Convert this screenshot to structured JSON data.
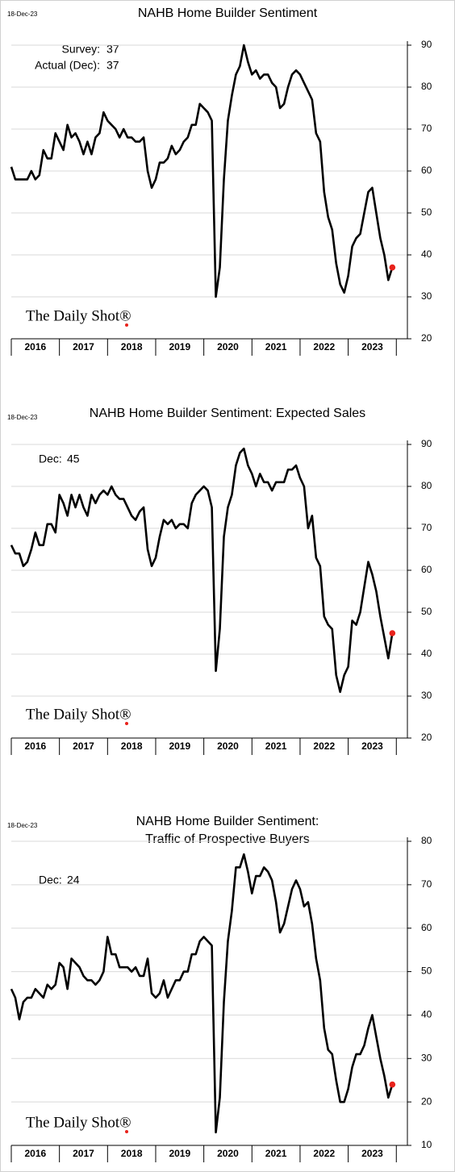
{
  "chart_data": [
    {
      "type": "line",
      "date_label": "18-Dec-23",
      "title": [
        "NAHB Home Builder Sentiment"
      ],
      "annotations": [
        {
          "label": "Survey:",
          "value": 37
        },
        {
          "label": "Actual (Dec):",
          "value": 37
        }
      ],
      "watermark": "The Daily Shot®",
      "x": [
        2016,
        2016.083,
        2016.167,
        2016.25,
        2016.333,
        2016.417,
        2016.5,
        2016.583,
        2016.667,
        2016.75,
        2016.833,
        2016.917,
        2017,
        2017.083,
        2017.167,
        2017.25,
        2017.333,
        2017.417,
        2017.5,
        2017.583,
        2017.667,
        2017.75,
        2017.833,
        2017.917,
        2018,
        2018.083,
        2018.167,
        2018.25,
        2018.333,
        2018.417,
        2018.5,
        2018.583,
        2018.667,
        2018.75,
        2018.833,
        2018.917,
        2019,
        2019.083,
        2019.167,
        2019.25,
        2019.333,
        2019.417,
        2019.5,
        2019.583,
        2019.667,
        2019.75,
        2019.833,
        2019.917,
        2020,
        2020.083,
        2020.167,
        2020.25,
        2020.333,
        2020.417,
        2020.5,
        2020.583,
        2020.667,
        2020.75,
        2020.833,
        2020.917,
        2021,
        2021.083,
        2021.167,
        2021.25,
        2021.333,
        2021.417,
        2021.5,
        2021.583,
        2021.667,
        2021.75,
        2021.833,
        2021.917,
        2022,
        2022.083,
        2022.167,
        2022.25,
        2022.333,
        2022.417,
        2022.5,
        2022.583,
        2022.667,
        2022.75,
        2022.833,
        2022.917,
        2023,
        2023.083,
        2023.167,
        2023.25,
        2023.333,
        2023.417,
        2023.5,
        2023.583,
        2023.667,
        2023.75,
        2023.833,
        2023.917
      ],
      "series": [
        {
          "color": "#000000",
          "marker_color": "#e8221b",
          "values": [
            61,
            58,
            58,
            58,
            58,
            60,
            58,
            59,
            65,
            63,
            63,
            69,
            67,
            65,
            71,
            68,
            69,
            67,
            64,
            67,
            64,
            68,
            69,
            74,
            72,
            71,
            70,
            68,
            70,
            68,
            68,
            67,
            67,
            68,
            60,
            56,
            58,
            62,
            62,
            63,
            66,
            64,
            65,
            67,
            68,
            71,
            71,
            76,
            75,
            74,
            72,
            30,
            37,
            58,
            72,
            78,
            83,
            85,
            90,
            86,
            83,
            84,
            82,
            83,
            83,
            81,
            80,
            75,
            76,
            80,
            83,
            84,
            83,
            81,
            79,
            77,
            69,
            67,
            55,
            49,
            46,
            38,
            33,
            31,
            35,
            42,
            44,
            45,
            50,
            55,
            56,
            50,
            44,
            40,
            34,
            37
          ]
        }
      ],
      "xlim": [
        2016,
        2024.23
      ],
      "xticks": [
        {
          "value": 2016.5,
          "label": "2016"
        },
        {
          "value": 2017.5,
          "label": "2017"
        },
        {
          "value": 2018.5,
          "label": "2018"
        },
        {
          "value": 2019.5,
          "label": "2019"
        },
        {
          "value": 2020.5,
          "label": "2020"
        },
        {
          "value": 2021.5,
          "label": "2021"
        },
        {
          "value": 2022.5,
          "label": "2022"
        },
        {
          "value": 2023.5,
          "label": "2023"
        }
      ],
      "ylim": [
        20,
        90
      ],
      "yticks": [
        20,
        30,
        40,
        50,
        60,
        70,
        80,
        90
      ],
      "grid": true
    },
    {
      "type": "line",
      "date_label": "18-Dec-23",
      "title": [
        "NAHB Home Builder Sentiment: Expected Sales"
      ],
      "annotations": [
        {
          "label": "Dec:",
          "value": 45
        }
      ],
      "watermark": "The Daily Shot®",
      "x": [
        2016,
        2016.083,
        2016.167,
        2016.25,
        2016.333,
        2016.417,
        2016.5,
        2016.583,
        2016.667,
        2016.75,
        2016.833,
        2016.917,
        2017,
        2017.083,
        2017.167,
        2017.25,
        2017.333,
        2017.417,
        2017.5,
        2017.583,
        2017.667,
        2017.75,
        2017.833,
        2017.917,
        2018,
        2018.083,
        2018.167,
        2018.25,
        2018.333,
        2018.417,
        2018.5,
        2018.583,
        2018.667,
        2018.75,
        2018.833,
        2018.917,
        2019,
        2019.083,
        2019.167,
        2019.25,
        2019.333,
        2019.417,
        2019.5,
        2019.583,
        2019.667,
        2019.75,
        2019.833,
        2019.917,
        2020,
        2020.083,
        2020.167,
        2020.25,
        2020.333,
        2020.417,
        2020.5,
        2020.583,
        2020.667,
        2020.75,
        2020.833,
        2020.917,
        2021,
        2021.083,
        2021.167,
        2021.25,
        2021.333,
        2021.417,
        2021.5,
        2021.583,
        2021.667,
        2021.75,
        2021.833,
        2021.917,
        2022,
        2022.083,
        2022.167,
        2022.25,
        2022.333,
        2022.417,
        2022.5,
        2022.583,
        2022.667,
        2022.75,
        2022.833,
        2022.917,
        2023,
        2023.083,
        2023.167,
        2023.25,
        2023.333,
        2023.417,
        2023.5,
        2023.583,
        2023.667,
        2023.75,
        2023.833,
        2023.917
      ],
      "series": [
        {
          "color": "#000000",
          "marker_color": "#e8221b",
          "values": [
            66,
            64,
            64,
            61,
            62,
            65,
            69,
            66,
            66,
            71,
            71,
            69,
            78,
            76,
            73,
            78,
            75,
            78,
            75,
            73,
            78,
            76,
            78,
            79,
            78,
            80,
            78,
            77,
            77,
            75,
            73,
            72,
            74,
            75,
            65,
            61,
            63,
            68,
            72,
            71,
            72,
            70,
            71,
            71,
            70,
            76,
            78,
            79,
            80,
            79,
            75,
            36,
            46,
            68,
            75,
            78,
            85,
            88,
            89,
            85,
            83,
            80,
            83,
            81,
            81,
            79,
            81,
            81,
            81,
            84,
            84,
            85,
            82,
            80,
            70,
            73,
            63,
            61,
            49,
            47,
            46,
            35,
            31,
            35,
            37,
            48,
            47,
            50,
            56,
            62,
            59,
            55,
            49,
            44,
            39,
            45
          ]
        }
      ],
      "xlim": [
        2016,
        2024.23
      ],
      "xticks": [
        {
          "value": 2016.5,
          "label": "2016"
        },
        {
          "value": 2017.5,
          "label": "2017"
        },
        {
          "value": 2018.5,
          "label": "2018"
        },
        {
          "value": 2019.5,
          "label": "2019"
        },
        {
          "value": 2020.5,
          "label": "2020"
        },
        {
          "value": 2021.5,
          "label": "2021"
        },
        {
          "value": 2022.5,
          "label": "2022"
        },
        {
          "value": 2023.5,
          "label": "2023"
        }
      ],
      "ylim": [
        20,
        90
      ],
      "yticks": [
        20,
        30,
        40,
        50,
        60,
        70,
        80,
        90
      ],
      "grid": true
    },
    {
      "type": "line",
      "date_label": "18-Dec-23",
      "title": [
        "NAHB Home Builder Sentiment:",
        "Traffic of Prospective Buyers"
      ],
      "annotations": [
        {
          "label": "Dec:",
          "value": 24
        }
      ],
      "watermark": "The Daily Shot®",
      "x": [
        2016,
        2016.083,
        2016.167,
        2016.25,
        2016.333,
        2016.417,
        2016.5,
        2016.583,
        2016.667,
        2016.75,
        2016.833,
        2016.917,
        2017,
        2017.083,
        2017.167,
        2017.25,
        2017.333,
        2017.417,
        2017.5,
        2017.583,
        2017.667,
        2017.75,
        2017.833,
        2017.917,
        2018,
        2018.083,
        2018.167,
        2018.25,
        2018.333,
        2018.417,
        2018.5,
        2018.583,
        2018.667,
        2018.75,
        2018.833,
        2018.917,
        2019,
        2019.083,
        2019.167,
        2019.25,
        2019.333,
        2019.417,
        2019.5,
        2019.583,
        2019.667,
        2019.75,
        2019.833,
        2019.917,
        2020,
        2020.083,
        2020.167,
        2020.25,
        2020.333,
        2020.417,
        2020.5,
        2020.583,
        2020.667,
        2020.75,
        2020.833,
        2020.917,
        2021,
        2021.083,
        2021.167,
        2021.25,
        2021.333,
        2021.417,
        2021.5,
        2021.583,
        2021.667,
        2021.75,
        2021.833,
        2021.917,
        2022,
        2022.083,
        2022.167,
        2022.25,
        2022.333,
        2022.417,
        2022.5,
        2022.583,
        2022.667,
        2022.75,
        2022.833,
        2022.917,
        2023,
        2023.083,
        2023.167,
        2023.25,
        2023.333,
        2023.417,
        2023.5,
        2023.583,
        2023.667,
        2023.75,
        2023.833,
        2023.917
      ],
      "series": [
        {
          "color": "#000000",
          "marker_color": "#e8221b",
          "values": [
            46,
            44,
            39,
            43,
            44,
            44,
            46,
            45,
            44,
            47,
            46,
            47,
            52,
            51,
            46,
            53,
            52,
            51,
            49,
            48,
            48,
            47,
            48,
            50,
            58,
            54,
            54,
            51,
            51,
            51,
            50,
            51,
            49,
            49,
            53,
            45,
            44,
            45,
            48,
            44,
            46,
            48,
            48,
            50,
            50,
            54,
            54,
            57,
            58,
            57,
            56,
            13,
            21,
            43,
            57,
            64,
            74,
            74,
            77,
            73,
            68,
            72,
            72,
            74,
            73,
            71,
            66,
            59,
            61,
            65,
            69,
            71,
            69,
            65,
            66,
            61,
            53,
            48,
            37,
            32,
            31,
            25,
            20,
            20,
            23,
            28,
            31,
            31,
            33,
            37,
            40,
            35,
            30,
            26,
            21,
            24
          ]
        }
      ],
      "xlim": [
        2016,
        2024.23
      ],
      "xticks": [
        {
          "value": 2016.5,
          "label": "2016"
        },
        {
          "value": 2017.5,
          "label": "2017"
        },
        {
          "value": 2018.5,
          "label": "2018"
        },
        {
          "value": 2019.5,
          "label": "2019"
        },
        {
          "value": 2020.5,
          "label": "2020"
        },
        {
          "value": 2021.5,
          "label": "2021"
        },
        {
          "value": 2022.5,
          "label": "2022"
        },
        {
          "value": 2023.5,
          "label": "2023"
        }
      ],
      "ylim": [
        10,
        80
      ],
      "yticks": [
        10,
        20,
        30,
        40,
        50,
        60,
        70,
        80
      ],
      "grid": true
    }
  ]
}
